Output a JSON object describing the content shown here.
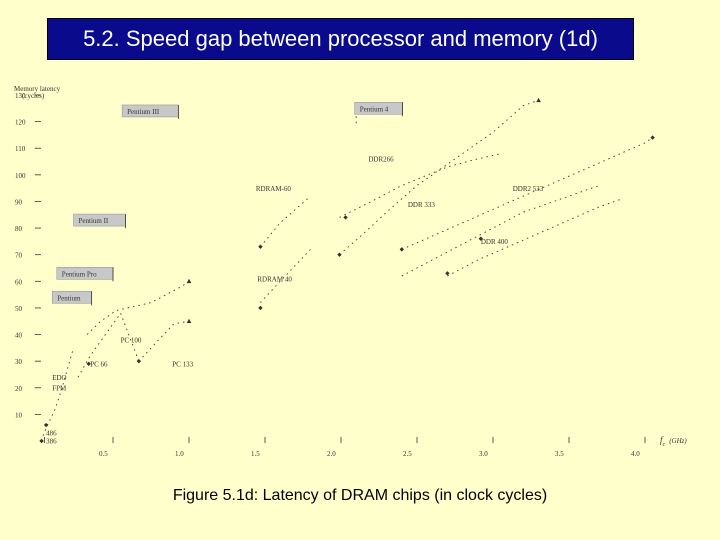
{
  "slide": {
    "title": "5.2. Speed gap between processor and memory (1d)",
    "caption": "Figure 5.1d: Latency of DRAM chips (in clock cycles)"
  },
  "colors": {
    "background": "#ffffcc",
    "title_bg": "#0a0a8c",
    "title_text": "#ffffff",
    "label_box": "#c8c8c8",
    "marks": "#333333"
  },
  "chart_data": {
    "type": "scatter",
    "title": "",
    "ylabel_lines": [
      "Memory latency",
      "(cycles)"
    ],
    "xlabel_prefix": "f",
    "xlabel_sub": "c",
    "xlabel_unit": "(GHz)",
    "xlim": [
      0.0,
      4.2
    ],
    "ylim": [
      0,
      140
    ],
    "x_ticks": [
      {
        "v": 0.5,
        "label": "0.5"
      },
      {
        "v": 1.0,
        "label": "1.0"
      },
      {
        "v": 1.5,
        "label": "1.5"
      },
      {
        "v": 2.0,
        "label": "2.0"
      },
      {
        "v": 2.5,
        "label": "2.5"
      },
      {
        "v": 3.0,
        "label": "3.0"
      },
      {
        "v": 3.5,
        "label": "3.5"
      },
      {
        "v": 4.0,
        "label": "4.0"
      }
    ],
    "y_ticks": [
      {
        "v": 10,
        "label": "10"
      },
      {
        "v": 20,
        "label": "20"
      },
      {
        "v": 30,
        "label": "30"
      },
      {
        "v": 40,
        "label": "40"
      },
      {
        "v": 50,
        "label": "50"
      },
      {
        "v": 60,
        "label": "60"
      },
      {
        "v": 70,
        "label": "70"
      },
      {
        "v": 80,
        "label": "80"
      },
      {
        "v": 90,
        "label": "90"
      },
      {
        "v": 100,
        "label": "100"
      },
      {
        "v": 110,
        "label": "110"
      },
      {
        "v": 120,
        "label": "120"
      },
      {
        "v": 130,
        "label": "130"
      }
    ],
    "processors": [
      {
        "label": "Pentium III",
        "x": 0.58,
        "y": 124
      },
      {
        "label": "Pentium 4",
        "x": 2.11,
        "y": 125
      },
      {
        "label": "Pentium II",
        "x": 0.26,
        "y": 83
      },
      {
        "label": "Pentium Pro",
        "x": 0.15,
        "y": 63
      },
      {
        "label": "Pentium",
        "x": 0.12,
        "y": 54
      }
    ],
    "memory_labels": [
      {
        "label": "RDRAM-60",
        "x": 1.44,
        "y": 94
      },
      {
        "label": "DDR266",
        "x": 2.18,
        "y": 105
      },
      {
        "label": "DDR2 533",
        "x": 3.13,
        "y": 94
      },
      {
        "label": "DDR 333",
        "x": 2.44,
        "y": 88
      },
      {
        "label": "DDR 400",
        "x": 2.92,
        "y": 74
      },
      {
        "label": "RDRAM 40",
        "x": 1.45,
        "y": 60
      },
      {
        "label": "PC 100",
        "x": 0.55,
        "y": 37
      },
      {
        "label": "PC 66",
        "x": 0.35,
        "y": 28
      },
      {
        "label": "PC 133",
        "x": 0.89,
        "y": 28
      },
      {
        "label": "EDO",
        "x": 0.1,
        "y": 23
      },
      {
        "label": "FPM",
        "x": 0.1,
        "y": 19
      },
      {
        "label": "486",
        "x": 0.06,
        "y": 2
      },
      {
        "label": "386",
        "x": 0.06,
        "y": -1
      }
    ],
    "series": [
      {
        "points": [
          [
            0.04,
            2
          ],
          [
            0.07,
            6
          ],
          [
            0.12,
            12
          ],
          [
            0.16,
            19
          ],
          [
            0.2,
            27
          ],
          [
            0.24,
            35
          ]
        ]
      },
      {
        "points": [
          [
            0.27,
            24
          ],
          [
            0.35,
            32
          ],
          [
            0.45,
            40
          ],
          [
            0.55,
            48
          ],
          [
            0.67,
            30
          ]
        ]
      },
      {
        "points": [
          [
            0.67,
            30
          ],
          [
            0.8,
            38
          ],
          [
            0.9,
            44
          ],
          [
            1.0,
            45
          ]
        ]
      },
      {
        "points": [
          [
            0.33,
            40
          ],
          [
            0.42,
            45
          ],
          [
            0.52,
            49
          ],
          [
            0.75,
            52
          ],
          [
            0.95,
            58
          ],
          [
            1.0,
            60
          ]
        ]
      },
      {
        "points": [
          [
            1.47,
            52
          ],
          [
            1.6,
            60
          ],
          [
            1.7,
            66
          ],
          [
            1.8,
            72
          ]
        ]
      },
      {
        "points": [
          [
            1.47,
            73
          ],
          [
            1.6,
            82
          ],
          [
            1.7,
            87
          ],
          [
            1.8,
            92
          ]
        ]
      },
      {
        "points": [
          [
            1.99,
            70
          ],
          [
            2.15,
            78
          ],
          [
            2.3,
            86
          ],
          [
            2.5,
            96
          ],
          [
            2.75,
            106
          ],
          [
            3.0,
            116
          ],
          [
            3.2,
            126
          ],
          [
            3.3,
            128
          ]
        ]
      },
      {
        "points": [
          [
            1.99,
            84
          ],
          [
            2.2,
            90
          ],
          [
            2.4,
            96
          ],
          [
            2.7,
            103
          ],
          [
            2.9,
            106
          ],
          [
            3.05,
            108
          ]
        ]
      },
      {
        "points": [
          [
            2.1,
            122
          ],
          [
            2.1,
            118
          ]
        ]
      },
      {
        "points": [
          [
            2.4,
            72
          ],
          [
            2.6,
            77
          ],
          [
            2.8,
            82
          ],
          [
            3.0,
            87
          ],
          [
            3.2,
            92
          ],
          [
            3.4,
            97
          ],
          [
            3.6,
            102
          ],
          [
            3.8,
            107
          ],
          [
            4.0,
            112
          ],
          [
            4.05,
            114
          ]
        ]
      },
      {
        "points": [
          [
            2.7,
            62
          ],
          [
            2.9,
            68
          ],
          [
            3.1,
            73
          ],
          [
            3.3,
            78
          ],
          [
            3.5,
            83
          ],
          [
            3.7,
            88
          ],
          [
            3.85,
            91
          ]
        ]
      },
      {
        "points": [
          [
            2.4,
            62
          ],
          [
            2.6,
            68
          ],
          [
            2.8,
            74
          ],
          [
            3.0,
            80
          ],
          [
            3.2,
            86
          ],
          [
            3.5,
            92
          ],
          [
            3.7,
            96
          ]
        ]
      }
    ],
    "markers": [
      {
        "x": 0.03,
        "y": 0,
        "shape": "diamond"
      },
      {
        "x": 0.06,
        "y": 6,
        "shape": "diamond"
      },
      {
        "x": 0.34,
        "y": 29,
        "shape": "diamond"
      },
      {
        "x": 0.67,
        "y": 30,
        "shape": "diamond"
      },
      {
        "x": 1.0,
        "y": 45,
        "shape": "triangle"
      },
      {
        "x": 1.0,
        "y": 60,
        "shape": "triangle"
      },
      {
        "x": 1.47,
        "y": 50,
        "shape": "diamond"
      },
      {
        "x": 1.47,
        "y": 73,
        "shape": "diamond"
      },
      {
        "x": 1.99,
        "y": 70,
        "shape": "diamond"
      },
      {
        "x": 2.03,
        "y": 84,
        "shape": "diamond"
      },
      {
        "x": 2.4,
        "y": 72,
        "shape": "diamond"
      },
      {
        "x": 2.7,
        "y": 63,
        "shape": "diamond"
      },
      {
        "x": 2.92,
        "y": 76,
        "shape": "diamond"
      },
      {
        "x": 3.3,
        "y": 128,
        "shape": "triangle"
      },
      {
        "x": 4.05,
        "y": 114,
        "shape": "diamond"
      },
      {
        "x": 0.29,
        "y": 55,
        "shape": "triangle"
      }
    ]
  }
}
